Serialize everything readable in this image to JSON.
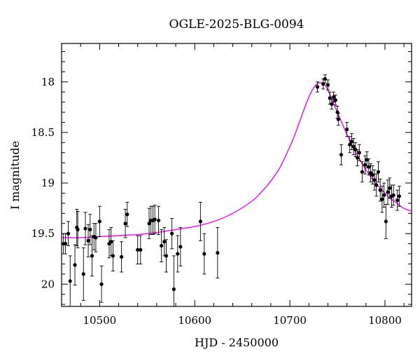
{
  "chart_data": {
    "type": "scatter",
    "title": "OGLE-2025-BLG-0094",
    "xlabel": "HJD - 2450000",
    "ylabel": "I magnitude",
    "xlim": [
      10460,
      10828
    ],
    "ylim": [
      20.22,
      17.62
    ],
    "y_inverted": true,
    "xticks": [
      10500,
      10600,
      10700,
      10800
    ],
    "yticks": [
      18,
      18.5,
      19,
      19.5,
      20
    ],
    "xtick_labels": [
      "10500",
      "10600",
      "10700",
      "10800"
    ],
    "ytick_labels": [
      "18",
      "18.5",
      "19",
      "19.5",
      "20"
    ],
    "grid": false,
    "colors": {
      "points": "#000000",
      "model": "#ff00ff"
    },
    "series": [
      {
        "kind": "points",
        "x": [
          10462,
          10464,
          10467,
          10469,
          10474,
          10476,
          10477,
          10483,
          10485,
          10488,
          10490,
          10492,
          10494,
          10496,
          10500,
          10502,
          10510,
          10512,
          10514,
          10523,
          10527,
          10529,
          10540,
          10543,
          10552,
          10554,
          10556,
          10558,
          10562,
          10565,
          10568,
          10570,
          10576,
          10578,
          10582,
          10585,
          10606,
          10610,
          10624,
          10729,
          10735,
          10737,
          10740,
          10742,
          10744,
          10746,
          10748,
          10750,
          10751,
          10754,
          10760,
          10763,
          10765,
          10767,
          10769,
          10771,
          10773,
          10776,
          10779,
          10781,
          10783,
          10785,
          10787,
          10789,
          10791,
          10793,
          10795,
          10797,
          10799,
          10801,
          10803,
          10805,
          10807,
          10809,
          10813,
          10815
        ],
        "y": [
          19.6,
          19.6,
          19.5,
          19.97,
          19.81,
          19.44,
          19.46,
          19.9,
          19.45,
          19.57,
          19.46,
          19.72,
          19.53,
          19.54,
          19.38,
          20.0,
          19.6,
          19.58,
          19.72,
          19.73,
          19.4,
          19.31,
          19.66,
          19.66,
          19.4,
          19.37,
          19.37,
          19.36,
          19.37,
          19.62,
          19.58,
          19.72,
          19.5,
          20.05,
          19.7,
          19.63,
          19.38,
          19.7,
          19.69,
          18.05,
          18.02,
          17.97,
          18.03,
          18.16,
          18.22,
          18.15,
          18.18,
          18.3,
          18.37,
          18.72,
          18.47,
          18.62,
          18.59,
          18.64,
          18.67,
          18.75,
          18.7,
          18.89,
          18.82,
          18.77,
          18.84,
          18.9,
          18.92,
          18.97,
          19.02,
          18.89,
          19.07,
          19.16,
          19.12,
          19.38,
          19.09,
          19.05,
          19.13,
          19.12,
          19.17,
          19.13
        ],
        "yerr": [
          0.1,
          0.1,
          0.12,
          0.25,
          0.2,
          0.18,
          0.18,
          0.26,
          0.16,
          0.16,
          0.15,
          0.2,
          0.13,
          0.14,
          0.15,
          0.18,
          0.14,
          0.14,
          0.15,
          0.15,
          0.14,
          0.12,
          0.14,
          0.14,
          0.15,
          0.14,
          0.14,
          0.14,
          0.14,
          0.16,
          0.14,
          0.16,
          0.15,
          0.33,
          0.18,
          0.19,
          0.19,
          0.2,
          0.25,
          0.05,
          0.05,
          0.04,
          0.05,
          0.06,
          0.05,
          0.05,
          0.05,
          0.06,
          0.06,
          0.1,
          0.07,
          0.08,
          0.08,
          0.08,
          0.07,
          0.08,
          0.08,
          0.1,
          0.09,
          0.08,
          0.08,
          0.09,
          0.09,
          0.1,
          0.11,
          0.1,
          0.11,
          0.13,
          0.12,
          0.17,
          0.12,
          0.1,
          0.11,
          0.1,
          0.1,
          0.1
        ]
      },
      {
        "kind": "model",
        "peak_x": 10733,
        "peak_y": 18.01,
        "base_y": 19.56,
        "x": [
          10460,
          10480,
          10500,
          10520,
          10540,
          10560,
          10580,
          10600,
          10620,
          10640,
          10660,
          10670,
          10680,
          10690,
          10700,
          10705,
          10710,
          10715,
          10720,
          10725,
          10730,
          10733,
          10736,
          10740,
          10745,
          10750,
          10755,
          10760,
          10765,
          10770,
          10775,
          10780,
          10785,
          10790,
          10795,
          10800,
          10805,
          10810,
          10815,
          10820,
          10828
        ],
        "y": [
          19.54,
          19.54,
          19.53,
          19.52,
          19.51,
          19.49,
          19.46,
          19.43,
          19.38,
          19.3,
          19.18,
          19.09,
          18.98,
          18.84,
          18.64,
          18.53,
          18.4,
          18.27,
          18.15,
          18.06,
          18.01,
          18.01,
          18.02,
          18.08,
          18.19,
          18.3,
          18.41,
          18.52,
          18.62,
          18.71,
          18.79,
          18.87,
          18.94,
          19.0,
          19.05,
          19.1,
          19.15,
          19.18,
          19.22,
          19.25,
          19.28
        ]
      }
    ]
  }
}
